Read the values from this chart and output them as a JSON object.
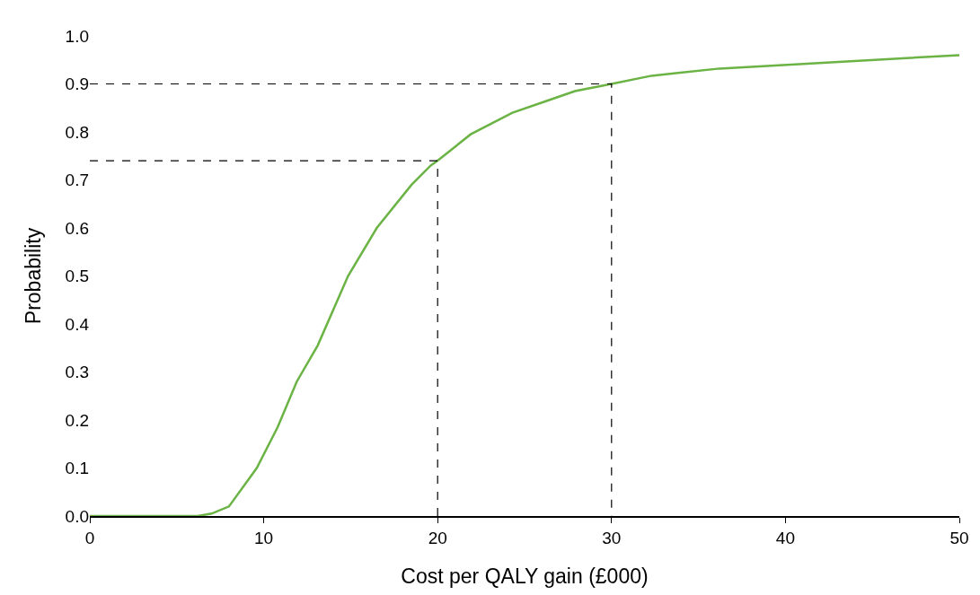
{
  "chart_data": {
    "type": "line",
    "xlabel": "Cost per QALY gain (£000)",
    "ylabel": "Probability",
    "xlim": [
      0,
      50
    ],
    "xticks": [
      0,
      10,
      20,
      30,
      40,
      50
    ],
    "ylim": [
      0,
      1
    ],
    "yticks": [
      {
        "value": 0,
        "label": "0.0"
      },
      {
        "value": 0.1,
        "label": "0.1"
      },
      {
        "value": 0.2,
        "label": "0.2"
      },
      {
        "value": 0.3,
        "label": "0.3"
      },
      {
        "value": 0.4,
        "label": "0.4"
      },
      {
        "value": 0.5,
        "label": "0.5"
      },
      {
        "value": 0.6,
        "label": "0.6"
      },
      {
        "value": 0.7,
        "label": "0.7"
      },
      {
        "value": 0.8,
        "label": "0.8"
      },
      {
        "value": 0.9,
        "label": "0.9"
      },
      {
        "value": 1,
        "label": "1.0"
      }
    ],
    "marker": "none",
    "series": [
      {
        "color": "#6ab344",
        "line_style": "solid",
        "x": [
          0,
          6.2,
          7.0,
          8.0,
          9.6,
          10.8,
          11.9,
          13.1,
          14.85,
          16.5,
          18.5,
          19.6,
          20,
          21.9,
          24.3,
          26.3,
          27.9,
          30,
          32.3,
          36.2,
          50
        ],
        "values": [
          0,
          0,
          0.005,
          0.02,
          0.1,
          0.185,
          0.28,
          0.355,
          0.5,
          0.6,
          0.69,
          0.73,
          0.74,
          0.795,
          0.84,
          0.865,
          0.885,
          0.9,
          0.917,
          0.932,
          0.96
        ]
      },
      {
        "color": "#000000",
        "line_style": "dashed",
        "x": [
          0,
          20,
          20
        ],
        "values": [
          0.74,
          0.74,
          0
        ]
      },
      {
        "color": "#000000",
        "line_style": "dashed",
        "x": [
          0,
          30,
          30
        ],
        "values": [
          0.9,
          0.9,
          0
        ]
      }
    ]
  }
}
